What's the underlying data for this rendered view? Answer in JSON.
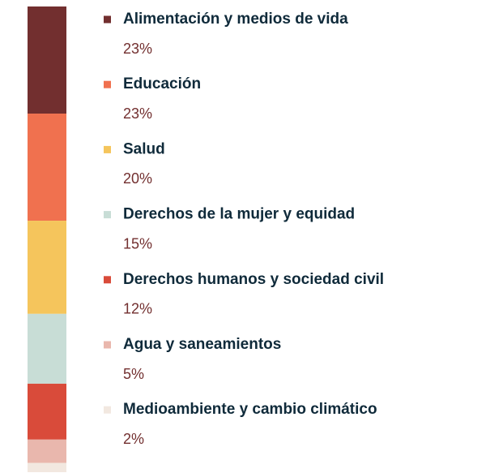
{
  "chart_data": {
    "type": "stacked-bar",
    "categories": [
      "Alimentación y medios de vida",
      "Educación",
      "Salud",
      "Derechos de la mujer y equidad",
      "Derechos humanos y sociedad civil",
      "Agua y saneamientos",
      "Medioambiente y cambio climático"
    ],
    "values": [
      23,
      23,
      20,
      15,
      12,
      5,
      2
    ],
    "value_labels": [
      "23%",
      "23%",
      "20%",
      "15%",
      "12%",
      "5%",
      "2%"
    ],
    "colors": [
      "#722f2f",
      "#f0714f",
      "#f5c55c",
      "#c8ddd6",
      "#d94b3a",
      "#e9b7ad",
      "#f2e8e0"
    ]
  }
}
